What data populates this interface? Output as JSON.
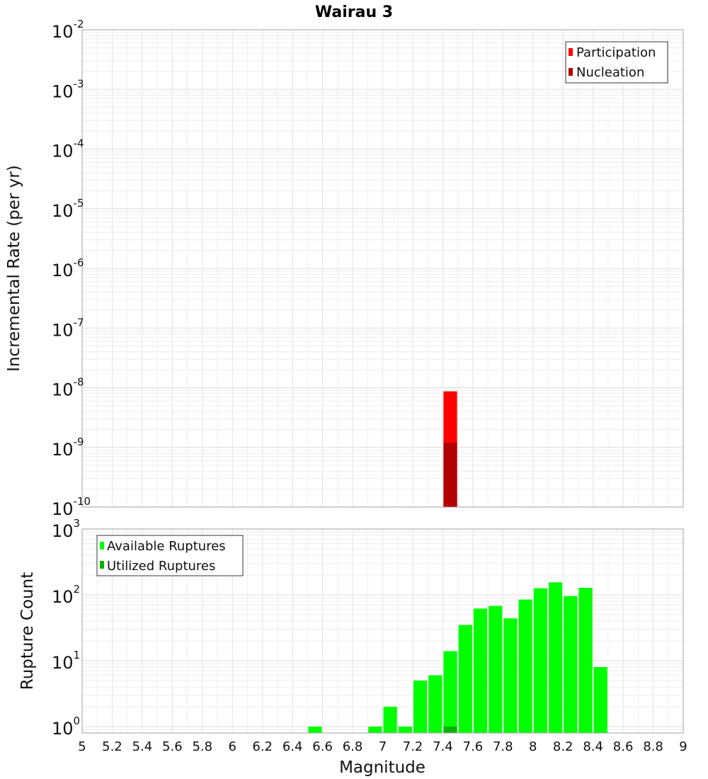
{
  "title": "Wairau 3",
  "chart_data": [
    {
      "type": "bar",
      "ylabel": "Incremental Rate (per yr)",
      "yscale": "log",
      "ylim": [
        1e-10,
        0.01
      ],
      "xlim": [
        5,
        9
      ],
      "bin_width": 0.1,
      "grid": true,
      "legend_position": "top-right",
      "y_ticks": [
        {
          "base": "10",
          "exp": "-10",
          "value": 1e-10
        },
        {
          "base": "10",
          "exp": "-9",
          "value": 1e-09
        },
        {
          "base": "10",
          "exp": "-8",
          "value": 1e-08
        },
        {
          "base": "10",
          "exp": "-7",
          "value": 1e-07
        },
        {
          "base": "10",
          "exp": "-6",
          "value": 1e-06
        },
        {
          "base": "10",
          "exp": "-5",
          "value": 1e-05
        },
        {
          "base": "10",
          "exp": "-4",
          "value": 0.0001
        },
        {
          "base": "10",
          "exp": "-3",
          "value": 0.001
        },
        {
          "base": "10",
          "exp": "-2",
          "value": 0.01
        }
      ],
      "series": [
        {
          "name": "Participation",
          "color": "#ff0000",
          "x": [
            7.45
          ],
          "values": [
            8.7e-09
          ]
        },
        {
          "name": "Nucleation",
          "color": "#b30000",
          "x": [
            7.45
          ],
          "values": [
            1.2e-09
          ]
        }
      ]
    },
    {
      "type": "bar",
      "xlabel": "Magnitude",
      "ylabel": "Rupture Count",
      "yscale": "log",
      "ylim": [
        0.8,
        1000
      ],
      "xlim": [
        5,
        9
      ],
      "bin_width": 0.1,
      "grid": true,
      "legend_position": "top-left",
      "x_ticks": [
        "5",
        "5.2",
        "5.4",
        "5.6",
        "5.8",
        "6",
        "6.2",
        "6.4",
        "6.6",
        "6.8",
        "7",
        "7.2",
        "7.4",
        "7.6",
        "7.8",
        "8",
        "8.2",
        "8.4",
        "8.6",
        "8.8",
        "9"
      ],
      "y_ticks": [
        {
          "base": "10",
          "exp": "0",
          "value": 1
        },
        {
          "base": "10",
          "exp": "1",
          "value": 10
        },
        {
          "base": "10",
          "exp": "2",
          "value": 100
        },
        {
          "base": "10",
          "exp": "3",
          "value": 1000
        }
      ],
      "series": [
        {
          "name": "Available Ruptures",
          "color": "#00ff00",
          "x": [
            6.55,
            6.95,
            7.05,
            7.15,
            7.25,
            7.35,
            7.45,
            7.55,
            7.65,
            7.75,
            7.85,
            7.95,
            8.05,
            8.15,
            8.25,
            8.35,
            8.45
          ],
          "values": [
            1,
            1,
            2,
            1,
            5,
            6,
            14,
            35,
            62,
            68,
            44,
            85,
            126,
            155,
            96,
            128,
            8
          ]
        },
        {
          "name": "Utilized Ruptures",
          "color": "#00b300",
          "x": [
            7.45
          ],
          "values": [
            1
          ]
        }
      ]
    }
  ]
}
